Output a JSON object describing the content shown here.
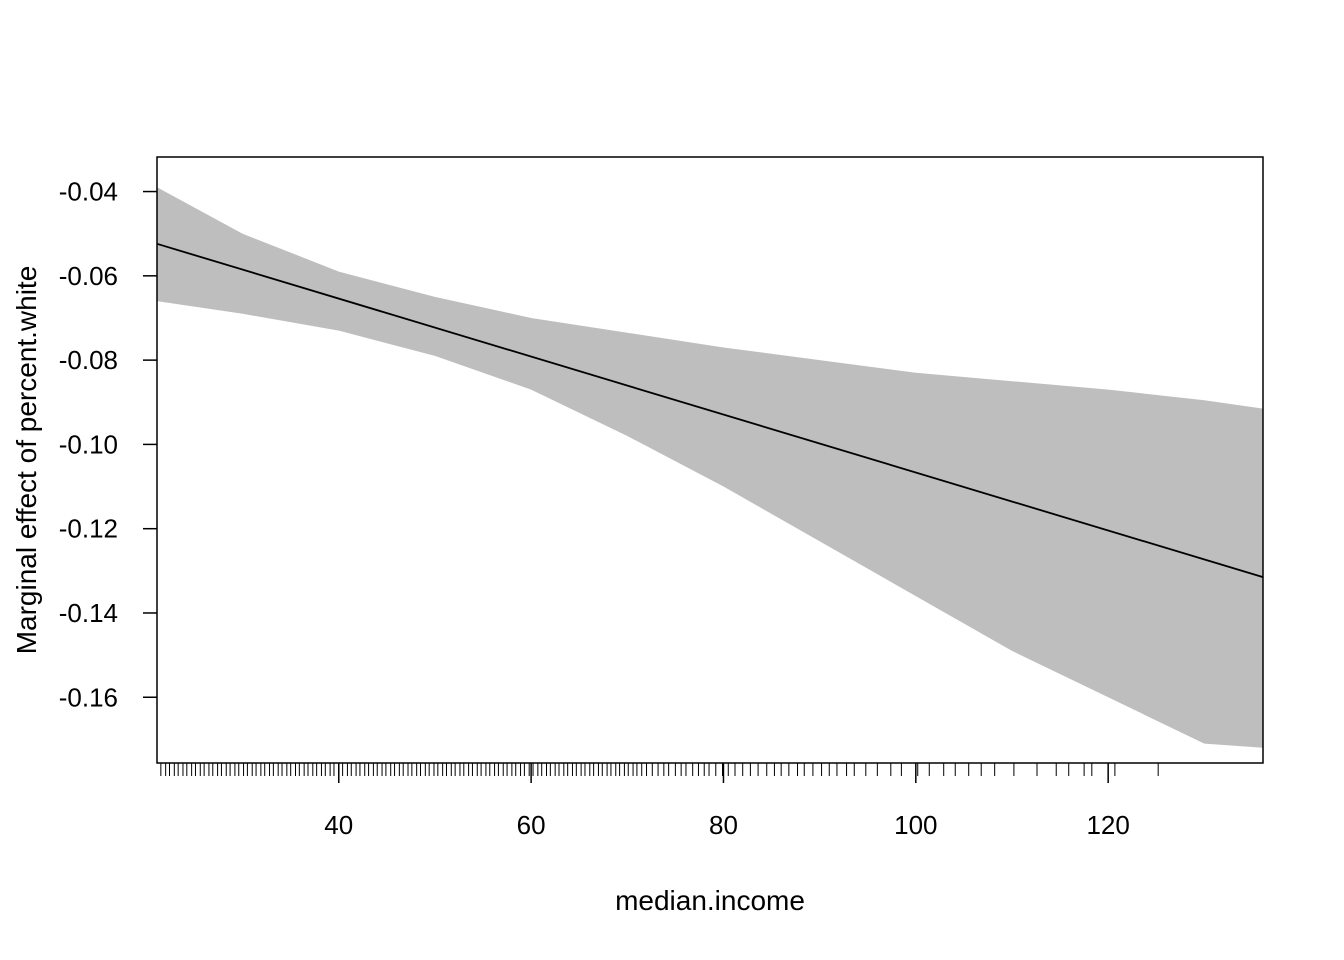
{
  "chart_data": {
    "type": "line",
    "title": "",
    "xlabel": "median.income",
    "ylabel": "Marginal effect of percent.white",
    "xlim": [
      21.1,
      136.1
    ],
    "ylim": [
      -0.1756,
      -0.0318
    ],
    "x_ticks": [
      40,
      60,
      80,
      100,
      120
    ],
    "x_tick_labels": [
      "40",
      "60",
      "80",
      "100",
      "120"
    ],
    "y_ticks": [
      -0.04,
      -0.06,
      -0.08,
      -0.1,
      -0.12,
      -0.14,
      -0.16
    ],
    "y_tick_labels": [
      "-0.04",
      "-0.06",
      "-0.08",
      "-0.10",
      "-0.12",
      "-0.14",
      "-0.16"
    ],
    "grid": false,
    "series": [
      {
        "values_x": [
          21.1,
          136.1
        ],
        "values_y": [
          -0.0524,
          -0.1315
        ]
      }
    ],
    "confidence_band": {
      "color": "#bebebe",
      "x": [
        21.1,
        30,
        40,
        50,
        60,
        70,
        80,
        90,
        100,
        110,
        120,
        130,
        136.1
      ],
      "upper": [
        -0.039,
        -0.05,
        -0.059,
        -0.065,
        -0.07,
        -0.0735,
        -0.077,
        -0.08,
        -0.083,
        -0.085,
        -0.087,
        -0.0895,
        -0.0915
      ],
      "lower": [
        -0.066,
        -0.069,
        -0.073,
        -0.079,
        -0.087,
        -0.098,
        -0.11,
        -0.123,
        -0.136,
        -0.149,
        -0.16,
        -0.171,
        -0.172
      ]
    },
    "rug": [
      21.5,
      22,
      22.4,
      22.9,
      23.3,
      23.8,
      24.2,
      24.7,
      25.1,
      25.6,
      26,
      26.5,
      26.9,
      27.4,
      27.8,
      28.3,
      28.7,
      29.2,
      29.6,
      30.1,
      30.5,
      31,
      31.4,
      31.9,
      32.3,
      32.8,
      33.2,
      33.7,
      34.1,
      34.6,
      35,
      35.5,
      35.9,
      36.4,
      36.8,
      37.3,
      37.7,
      38.2,
      38.6,
      39.1,
      39.5,
      40,
      40.4,
      40.9,
      41.3,
      41.8,
      42.2,
      42.7,
      43.1,
      43.6,
      44,
      44.5,
      44.9,
      45.4,
      45.8,
      46.3,
      46.7,
      47.2,
      47.6,
      48.1,
      48.5,
      49,
      49.4,
      49.9,
      50.3,
      50.8,
      51.2,
      51.7,
      52.1,
      52.6,
      53,
      53.5,
      53.9,
      54.4,
      54.8,
      55.3,
      55.7,
      56.2,
      56.6,
      57.1,
      57.5,
      58,
      58.4,
      58.9,
      59.3,
      59.8,
      60.2,
      60.7,
      61.1,
      61.6,
      62,
      62.5,
      62.9,
      63.4,
      63.8,
      64.3,
      64.7,
      65.2,
      65.6,
      66.1,
      66.5,
      67,
      67.4,
      67.9,
      68.3,
      68.8,
      69.2,
      69.7,
      70.1,
      70.6,
      71,
      71.5,
      72,
      72.6,
      73.2,
      73.8,
      74.3,
      75,
      75.6,
      76.1,
      76.8,
      77.4,
      78,
      78.5,
      79.2,
      79.9,
      80.5,
      81.2,
      82,
      82.8,
      83.6,
      84.5,
      85.3,
      86,
      86.8,
      87.7,
      88.4,
      89.3,
      90.2,
      91,
      91.8,
      92.8,
      93.6,
      94.8,
      96,
      97.4,
      98.5,
      100.2,
      101.4,
      102.9,
      104.1,
      105.5,
      106.8,
      108.2,
      110.2,
      112.6,
      114.6,
      115.9,
      117.5,
      118.3,
      120.7,
      125.2
    ]
  }
}
